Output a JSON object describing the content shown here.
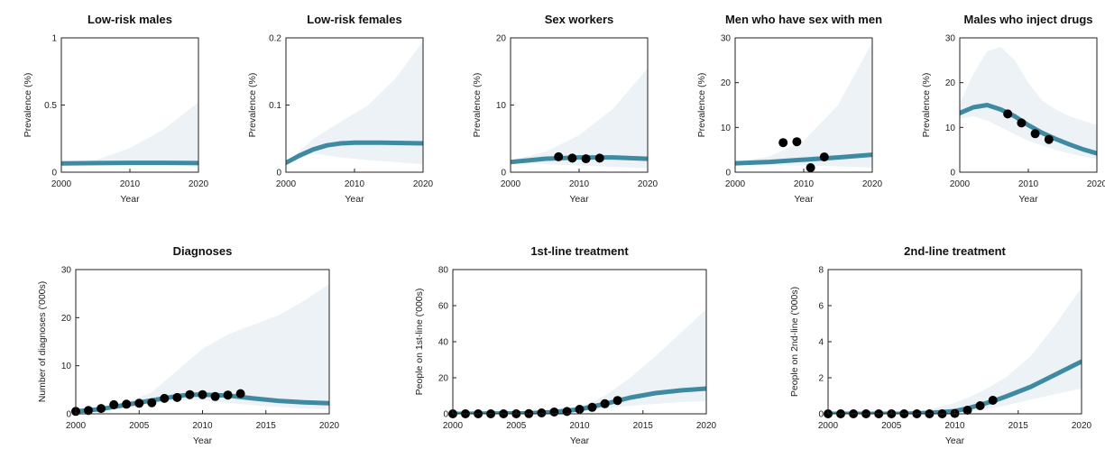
{
  "chart_data": [
    {
      "type": "line",
      "title": "Low-risk males",
      "xlabel": "Year",
      "ylabel": "Prevalence (%)",
      "xlim": [
        2000,
        2020
      ],
      "ylim": [
        0,
        1
      ],
      "xticks": [
        "2000",
        "2010",
        "2020"
      ],
      "yticks": [
        "0",
        "0.5",
        "1"
      ],
      "series": [
        {
          "kind": "band",
          "x": [
            2000,
            2005,
            2010,
            2015,
            2020
          ],
          "lower": [
            0.06,
            0.06,
            0.06,
            0.055,
            0.055
          ],
          "upper": [
            0.06,
            0.09,
            0.18,
            0.32,
            0.52
          ]
        },
        {
          "kind": "line",
          "x": [
            2000,
            2005,
            2010,
            2015,
            2020
          ],
          "y": [
            0.065,
            0.068,
            0.07,
            0.07,
            0.068
          ]
        }
      ]
    },
    {
      "type": "line",
      "title": "Low-risk females",
      "xlabel": "Year",
      "ylabel": "Prevalence (%)",
      "xlim": [
        2000,
        2020
      ],
      "ylim": [
        0,
        0.2
      ],
      "xticks": [
        "2000",
        "2010",
        "2020"
      ],
      "yticks": [
        "0",
        "0.1",
        "0.2"
      ],
      "series": [
        {
          "kind": "band",
          "x": [
            2000,
            2004,
            2008,
            2012,
            2016,
            2020
          ],
          "lower": [
            0.014,
            0.028,
            0.022,
            0.018,
            0.015,
            0.012
          ],
          "upper": [
            0.014,
            0.05,
            0.075,
            0.1,
            0.14,
            0.195
          ]
        },
        {
          "kind": "line",
          "x": [
            2000,
            2002,
            2004,
            2006,
            2008,
            2010,
            2014,
            2020
          ],
          "y": [
            0.014,
            0.025,
            0.034,
            0.04,
            0.043,
            0.044,
            0.044,
            0.043
          ]
        }
      ]
    },
    {
      "type": "line",
      "title": "Sex workers",
      "xlabel": "Year",
      "ylabel": "Prevalence (%)",
      "xlim": [
        2000,
        2020
      ],
      "ylim": [
        0,
        20
      ],
      "xticks": [
        "2000",
        "2010",
        "2020"
      ],
      "yticks": [
        "0",
        "10",
        "20"
      ],
      "series": [
        {
          "kind": "band",
          "x": [
            2000,
            2005,
            2010,
            2015,
            2020
          ],
          "lower": [
            1.5,
            1.2,
            1.0,
            0.8,
            0.6
          ],
          "upper": [
            1.8,
            3.0,
            5.5,
            9.5,
            15.5
          ]
        },
        {
          "kind": "line",
          "x": [
            2000,
            2005,
            2010,
            2015,
            2020
          ],
          "y": [
            1.5,
            2.0,
            2.2,
            2.2,
            2.0
          ]
        },
        {
          "kind": "points",
          "x": [
            2007,
            2009,
            2011,
            2013
          ],
          "y": [
            2.3,
            2.1,
            2.0,
            2.1
          ]
        }
      ]
    },
    {
      "type": "line",
      "title": "Men who have sex with men",
      "xlabel": "Year",
      "ylabel": "Prevalence (%)",
      "xlim": [
        2000,
        2020
      ],
      "ylim": [
        0,
        30
      ],
      "xticks": [
        "2000",
        "2010",
        "2020"
      ],
      "yticks": [
        "0",
        "10",
        "20",
        "30"
      ],
      "series": [
        {
          "kind": "band",
          "x": [
            2000,
            2005,
            2010,
            2015,
            2020
          ],
          "lower": [
            1.8,
            1.6,
            1.5,
            1.3,
            1.0
          ],
          "upper": [
            2.2,
            3.5,
            7.0,
            15.0,
            29.0
          ]
        },
        {
          "kind": "line",
          "x": [
            2000,
            2005,
            2010,
            2015,
            2020
          ],
          "y": [
            2.0,
            2.3,
            2.8,
            3.3,
            3.9
          ]
        },
        {
          "kind": "points",
          "x": [
            2007,
            2009,
            2011,
            2013
          ],
          "y": [
            6.6,
            6.8,
            1.0,
            3.4
          ]
        }
      ]
    },
    {
      "type": "line",
      "title": "Males who inject drugs",
      "xlabel": "Year",
      "ylabel": "Prevalence (%)",
      "xlim": [
        2000,
        2020
      ],
      "ylim": [
        0,
        30
      ],
      "xticks": [
        "2000",
        "2010",
        "2020"
      ],
      "yticks": [
        "0",
        "10",
        "20",
        "30"
      ],
      "series": [
        {
          "kind": "band",
          "x": [
            2000,
            2002,
            2004,
            2006,
            2008,
            2010,
            2012,
            2014,
            2016,
            2018,
            2020
          ],
          "lower": [
            12.0,
            12.5,
            11.5,
            10.0,
            8.5,
            7.0,
            6.0,
            5.0,
            4.2,
            3.5,
            3.0
          ],
          "upper": [
            15.5,
            22.0,
            27.0,
            28.0,
            25.0,
            20.0,
            16.0,
            14.0,
            12.5,
            11.5,
            10.5
          ]
        },
        {
          "kind": "line",
          "x": [
            2000,
            2002,
            2004,
            2006,
            2008,
            2010,
            2012,
            2014,
            2016,
            2018,
            2020
          ],
          "y": [
            13.2,
            14.5,
            15.0,
            14.0,
            12.5,
            10.5,
            8.8,
            7.4,
            6.2,
            5.1,
            4.2
          ]
        },
        {
          "kind": "points",
          "x": [
            2007,
            2009,
            2011,
            2013
          ],
          "y": [
            13.0,
            11.0,
            8.6,
            7.3
          ]
        }
      ]
    },
    {
      "type": "line",
      "title": "Diagnoses",
      "xlabel": "Year",
      "ylabel": "Number of diagnoses ('000s)",
      "xlim": [
        2000,
        2020
      ],
      "ylim": [
        0,
        30
      ],
      "xticks": [
        "2000",
        "2005",
        "2010",
        "2015",
        "2020"
      ],
      "yticks": [
        "0",
        "10",
        "20",
        "30"
      ],
      "series": [
        {
          "kind": "band",
          "x": [
            2000,
            2002,
            2004,
            2006,
            2008,
            2010,
            2012,
            2014,
            2016,
            2018,
            2020
          ],
          "lower": [
            0.4,
            0.6,
            1.2,
            2.0,
            2.8,
            2.8,
            2.3,
            1.8,
            1.4,
            1.1,
            0.9
          ],
          "upper": [
            0.6,
            1.3,
            2.4,
            4.5,
            9.0,
            13.5,
            16.5,
            18.5,
            20.5,
            23.5,
            27.0
          ]
        },
        {
          "kind": "line",
          "x": [
            2000,
            2002,
            2004,
            2006,
            2008,
            2009,
            2010,
            2012,
            2014,
            2016,
            2018,
            2020
          ],
          "y": [
            0.5,
            1.0,
            1.9,
            2.8,
            3.7,
            4.0,
            4.0,
            3.8,
            3.2,
            2.7,
            2.4,
            2.2
          ]
        },
        {
          "kind": "points",
          "x": [
            2000,
            2001,
            2002,
            2003,
            2004,
            2005,
            2006,
            2007,
            2008,
            2009,
            2010,
            2011,
            2012,
            2013
          ],
          "y": [
            0.5,
            0.7,
            1.1,
            1.9,
            2.0,
            2.2,
            2.3,
            3.2,
            3.4,
            4.0,
            4.0,
            3.6,
            3.9,
            4.2
          ]
        }
      ]
    },
    {
      "type": "line",
      "title": "1st-line treatment",
      "xlabel": "Year",
      "ylabel": "People on 1st-line ('000s)",
      "xlim": [
        2000,
        2020
      ],
      "ylim": [
        0,
        80
      ],
      "xticks": [
        "2000",
        "2005",
        "2010",
        "2015",
        "2020"
      ],
      "yticks": [
        "0",
        "20",
        "40",
        "60",
        "80"
      ],
      "series": [
        {
          "kind": "band",
          "x": [
            2000,
            2006,
            2008,
            2010,
            2012,
            2014,
            2016,
            2018,
            2020
          ],
          "lower": [
            0,
            0,
            0.3,
            1.0,
            3.0,
            4.5,
            5.5,
            6.5,
            7.0
          ],
          "upper": [
            0.3,
            0.5,
            1.0,
            3.5,
            10.0,
            20.0,
            32.0,
            45.0,
            58.0
          ]
        },
        {
          "kind": "line",
          "x": [
            2000,
            2006,
            2008,
            2010,
            2012,
            2013,
            2014,
            2016,
            2018,
            2020
          ],
          "y": [
            0,
            0.3,
            1.0,
            2.5,
            5.5,
            7.2,
            9.0,
            11.5,
            13.0,
            14.0
          ]
        },
        {
          "kind": "points",
          "x": [
            2000,
            2001,
            2002,
            2003,
            2004,
            2005,
            2006,
            2007,
            2008,
            2009,
            2010,
            2011,
            2012,
            2013
          ],
          "y": [
            0,
            0,
            0,
            0,
            0,
            0,
            0.1,
            0.5,
            1.0,
            1.3,
            2.5,
            3.6,
            5.6,
            7.4
          ]
        }
      ]
    },
    {
      "type": "line",
      "title": "2nd-line treatment",
      "xlabel": "Year",
      "ylabel": "People on 2nd-line ('000s)",
      "xlim": [
        2000,
        2020
      ],
      "ylim": [
        0,
        8
      ],
      "xticks": [
        "2000",
        "2005",
        "2010",
        "2015",
        "2020"
      ],
      "yticks": [
        "0",
        "2",
        "4",
        "6",
        "8"
      ],
      "series": [
        {
          "kind": "band",
          "x": [
            2000,
            2006,
            2008,
            2010,
            2012,
            2014,
            2016,
            2018,
            2020
          ],
          "lower": [
            0,
            0,
            0,
            0.05,
            0.2,
            0.45,
            0.8,
            1.1,
            1.4
          ],
          "upper": [
            0.05,
            0.1,
            0.25,
            0.6,
            1.2,
            2.0,
            3.2,
            5.0,
            7.0
          ]
        },
        {
          "kind": "line",
          "x": [
            2000,
            2006,
            2008,
            2010,
            2011,
            2012,
            2013,
            2014,
            2016,
            2018,
            2020
          ],
          "y": [
            0,
            0,
            0.05,
            0.15,
            0.3,
            0.5,
            0.7,
            0.95,
            1.5,
            2.2,
            2.9
          ]
        },
        {
          "kind": "points",
          "x": [
            2000,
            2001,
            2002,
            2003,
            2004,
            2005,
            2006,
            2007,
            2008,
            2009,
            2010,
            2011,
            2012,
            2013
          ],
          "y": [
            0,
            0,
            0,
            0,
            0,
            0,
            0,
            0,
            0,
            0,
            0.02,
            0.2,
            0.45,
            0.75
          ]
        }
      ]
    }
  ],
  "colors": {
    "line": "#3f8aa3",
    "band": "#ecf2f5",
    "points": "#000000",
    "axis": "#222222"
  }
}
